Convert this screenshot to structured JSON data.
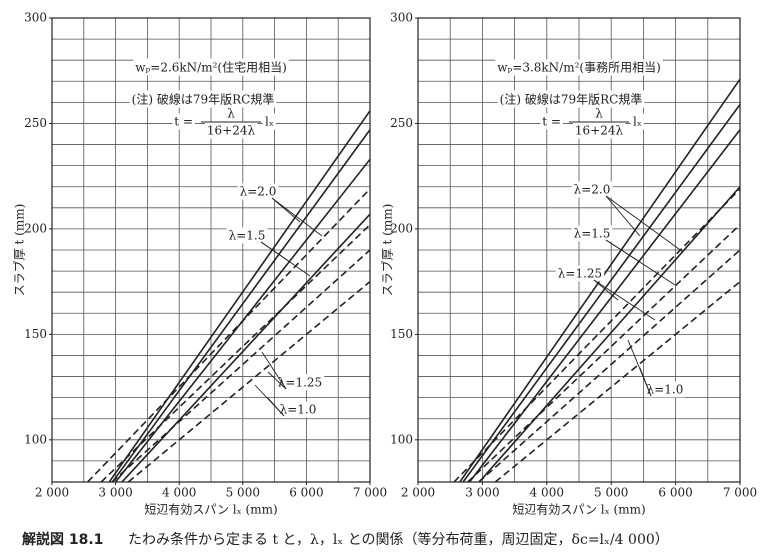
{
  "chart_data": [
    {
      "type": "line",
      "title": "wₚ=2.6kN/m²(住宅用相当)",
      "note": "(注) 破線は79年版RC規準",
      "formula": {
        "lhs": "t =",
        "numerator": "λ",
        "denominator": "16+24λ",
        "rhs": "lₓ"
      },
      "xlabel": "短辺有効スパン lₓ (mm)",
      "ylabel": "スラブ厚 t (mm)",
      "xlim": [
        2000,
        7000
      ],
      "ylim": [
        80,
        300
      ],
      "xticks": [
        {
          "value": 2000,
          "label": "2 000"
        },
        {
          "value": 3000,
          "label": "3 000"
        },
        {
          "value": 4000,
          "label": "4 000"
        },
        {
          "value": 5000,
          "label": "5 000"
        },
        {
          "value": 6000,
          "label": "6 000"
        },
        {
          "value": 7000,
          "label": "7 000"
        }
      ],
      "yticks": [
        100,
        150,
        200,
        250,
        300
      ],
      "xgrid": [
        2000,
        2500,
        3000,
        3500,
        4000,
        4500,
        5000,
        5500,
        6000,
        6500,
        7000
      ],
      "ygrid": [
        80,
        90,
        100,
        110,
        120,
        130,
        140,
        150,
        160,
        170,
        180,
        190,
        200,
        210,
        220,
        230,
        240,
        250,
        260,
        270,
        280,
        290,
        300
      ],
      "annotations": [
        "λ=2.0",
        "λ=1.5",
        "λ=1.25",
        "λ=1.0"
      ],
      "series": [
        {
          "color": "#222222",
          "line_style": "solid",
          "x": [
            2900,
            7000
          ],
          "values": [
            80,
            256
          ]
        },
        {
          "color": "#222222",
          "line_style": "solid",
          "x": [
            2950,
            7000
          ],
          "values": [
            80,
            247
          ]
        },
        {
          "color": "#222222",
          "line_style": "solid",
          "x": [
            3000,
            7000
          ],
          "values": [
            80,
            233
          ]
        },
        {
          "color": "#222222",
          "line_style": "solid",
          "x": [
            3100,
            7000
          ],
          "values": [
            80,
            207
          ]
        },
        {
          "color": "#222222",
          "line_style": "dashed",
          "x": [
            2560,
            7000
          ],
          "values": [
            80,
            219
          ]
        },
        {
          "color": "#222222",
          "line_style": "dashed",
          "x": [
            2773,
            7000
          ],
          "values": [
            80,
            202
          ]
        },
        {
          "color": "#222222",
          "line_style": "dashed",
          "x": [
            2944,
            7000
          ],
          "values": [
            80,
            190
          ]
        },
        {
          "color": "#222222",
          "line_style": "dashed",
          "x": [
            3200,
            7000
          ],
          "values": [
            80,
            175
          ]
        }
      ]
    },
    {
      "type": "line",
      "title": "wₚ=3.8kN/m²(事務所用相当)",
      "note": "(注) 破線は79年版RC規準",
      "formula": {
        "lhs": "t =",
        "numerator": "λ",
        "denominator": "16+24λ",
        "rhs": "lₓ"
      },
      "xlabel": "短辺有効スパン lₓ (mm)",
      "ylabel": "スラブ厚 t (mm)",
      "xlim": [
        2000,
        7000
      ],
      "ylim": [
        80,
        300
      ],
      "xticks": [
        {
          "value": 2000,
          "label": "2 000"
        },
        {
          "value": 3000,
          "label": "3 000"
        },
        {
          "value": 4000,
          "label": "4 000"
        },
        {
          "value": 5000,
          "label": "5 000"
        },
        {
          "value": 6000,
          "label": "6 000"
        },
        {
          "value": 7000,
          "label": "7 000"
        }
      ],
      "yticks": [
        100,
        150,
        200,
        250,
        300
      ],
      "xgrid": [
        2000,
        2500,
        3000,
        3500,
        4000,
        4500,
        5000,
        5500,
        6000,
        6500,
        7000
      ],
      "ygrid": [
        80,
        90,
        100,
        110,
        120,
        130,
        140,
        150,
        160,
        170,
        180,
        190,
        200,
        210,
        220,
        230,
        240,
        250,
        260,
        270,
        280,
        290,
        300
      ],
      "annotations": [
        "λ=2.0",
        "λ=1.5",
        "λ=1.25",
        "λ=1.0"
      ],
      "series": [
        {
          "color": "#222222",
          "line_style": "solid",
          "x": [
            2650,
            7000
          ],
          "values": [
            80,
            271
          ]
        },
        {
          "color": "#222222",
          "line_style": "solid",
          "x": [
            2700,
            7000
          ],
          "values": [
            80,
            259
          ]
        },
        {
          "color": "#222222",
          "line_style": "solid",
          "x": [
            2800,
            7000
          ],
          "values": [
            80,
            247
          ]
        },
        {
          "color": "#222222",
          "line_style": "solid",
          "x": [
            2950,
            7000
          ],
          "values": [
            80,
            220
          ]
        },
        {
          "color": "#222222",
          "line_style": "dashed",
          "x": [
            2560,
            7000
          ],
          "values": [
            80,
            219
          ]
        },
        {
          "color": "#222222",
          "line_style": "dashed",
          "x": [
            2773,
            7000
          ],
          "values": [
            80,
            202
          ]
        },
        {
          "color": "#222222",
          "line_style": "dashed",
          "x": [
            2944,
            7000
          ],
          "values": [
            80,
            190
          ]
        },
        {
          "color": "#222222",
          "line_style": "dashed",
          "x": [
            3200,
            7000
          ],
          "values": [
            80,
            175
          ]
        }
      ]
    }
  ],
  "caption": {
    "label": "解説図 18.1",
    "text": "たわみ条件から定まる t と，λ，lₓ との関係（等分布荷重，周辺固定，δc=lₓ/4 000）"
  }
}
